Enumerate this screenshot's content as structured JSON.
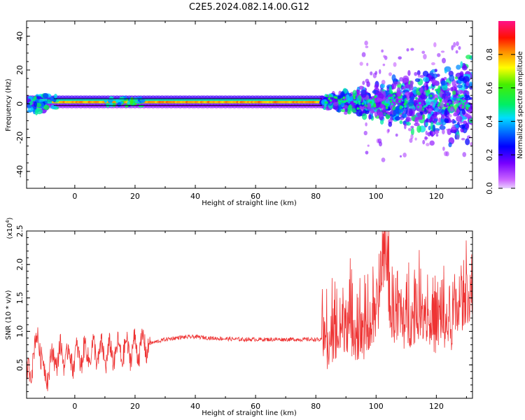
{
  "title": "C2E5.2024.082.14.00.G12",
  "chart_data": [
    {
      "type": "heatmap",
      "xlabel": "Height of straight line (km)",
      "ylabel": "Frequency (Hz)",
      "xlim": [
        -16,
        132
      ],
      "ylim": [
        -50,
        49
      ],
      "xticks": [
        "0",
        "20",
        "40",
        "60",
        "80",
        "100",
        "120"
      ],
      "yticks": [
        "40",
        "20",
        "0",
        "-20",
        "-40"
      ],
      "colorbar": {
        "label": "Normalized spectral amplitude",
        "ticks": [
          "0.0",
          "0.2",
          "0.4",
          "0.6",
          "0.8"
        ],
        "range": [
          0,
          1
        ]
      },
      "description_values": {
        "band_center_hz": 1,
        "band_halfwidth_hz": 2,
        "band_extent_km": [
          -16,
          82
        ],
        "band_amplitude": 0.85,
        "scatter_spread_hz_at_130km": 25
      }
    },
    {
      "type": "line",
      "xlabel": "Height of straight line (km)",
      "ylabel": "SNR (10 * v/v)",
      "y_multiplier": "(x10",
      "y_multiplier_exp": "4",
      "y_multiplier_close": ")",
      "xlim": [
        -16,
        132
      ],
      "ylim": [
        0,
        2.5
      ],
      "xticks": [
        "0",
        "20",
        "40",
        "60",
        "80",
        "100",
        "120"
      ],
      "yticks": [
        "2.5",
        "2.0",
        "1.5",
        "1.0",
        "0.5"
      ],
      "color": "#ee3333",
      "series": [
        {
          "x": [
            -16,
            -12,
            -10,
            -8,
            -5,
            0,
            5,
            10,
            15,
            20,
            25,
            30,
            35,
            40,
            45,
            50,
            55,
            60,
            65,
            70,
            75,
            80,
            82,
            84,
            90,
            95,
            100,
            103,
            105,
            110,
            115,
            120,
            125,
            130
          ],
          "y": [
            0.25,
            0.95,
            0.3,
            0.55,
            0.65,
            0.6,
            0.7,
            0.65,
            0.7,
            0.75,
            0.82,
            0.88,
            0.91,
            0.92,
            0.9,
            0.89,
            0.88,
            0.88,
            0.88,
            0.88,
            0.88,
            0.88,
            0.87,
            0.5,
            1.0,
            0.7,
            1.1,
            2.5,
            1.2,
            1.0,
            1.3,
            0.9,
            1.0,
            1.6
          ]
        }
      ]
    }
  ]
}
